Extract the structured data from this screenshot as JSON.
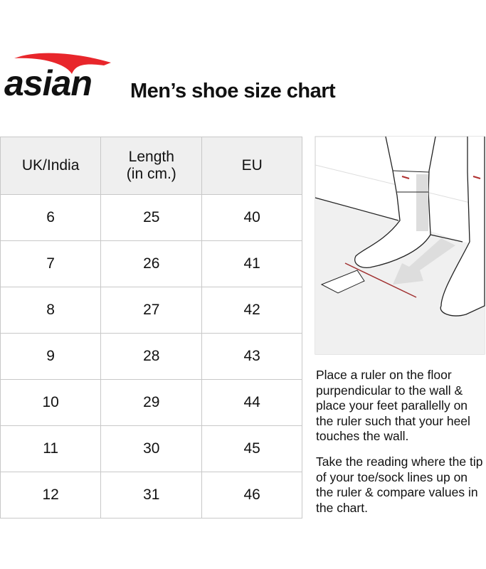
{
  "brand": {
    "name": "asian",
    "accent": "#e8262b"
  },
  "title": "Men’s shoe size chart",
  "table": {
    "headers": [
      "UK/India",
      "Length\n(in cm.)",
      "EU"
    ],
    "rows": [
      [
        "6",
        "25",
        "40"
      ],
      [
        "7",
        "26",
        "41"
      ],
      [
        "8",
        "27",
        "42"
      ],
      [
        "9",
        "28",
        "43"
      ],
      [
        "10",
        "29",
        "44"
      ],
      [
        "11",
        "30",
        "45"
      ],
      [
        "12",
        "31",
        "46"
      ]
    ]
  },
  "instructions": [
    "Place a ruler on the floor purpendicular to the wall & place your feet parallelly on the ruler such that your heel touches the wall.",
    "Take the reading where the tip of your toe/sock lines up on the ruler & compare values in the chart."
  ]
}
